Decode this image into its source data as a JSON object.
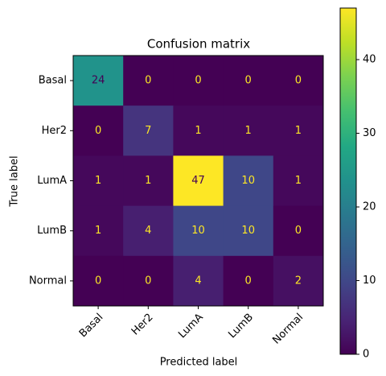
{
  "chart_data": {
    "type": "heatmap",
    "title": "Confusion matrix",
    "x_label": "Predicted label",
    "y_label": "True label",
    "x_categories": [
      "Basal",
      "Her2",
      "LumA",
      "LumB",
      "Normal"
    ],
    "y_categories": [
      "Basal",
      "Her2",
      "LumA",
      "LumB",
      "Normal"
    ],
    "values": [
      [
        24,
        0,
        0,
        0,
        0
      ],
      [
        0,
        7,
        1,
        1,
        1
      ],
      [
        1,
        1,
        47,
        10,
        1
      ],
      [
        1,
        4,
        10,
        10,
        0
      ],
      [
        0,
        0,
        4,
        0,
        2
      ]
    ],
    "colormap": "viridis",
    "clim": [
      0,
      47
    ],
    "colorbar_ticks": [
      0,
      10,
      20,
      30,
      40
    ]
  }
}
